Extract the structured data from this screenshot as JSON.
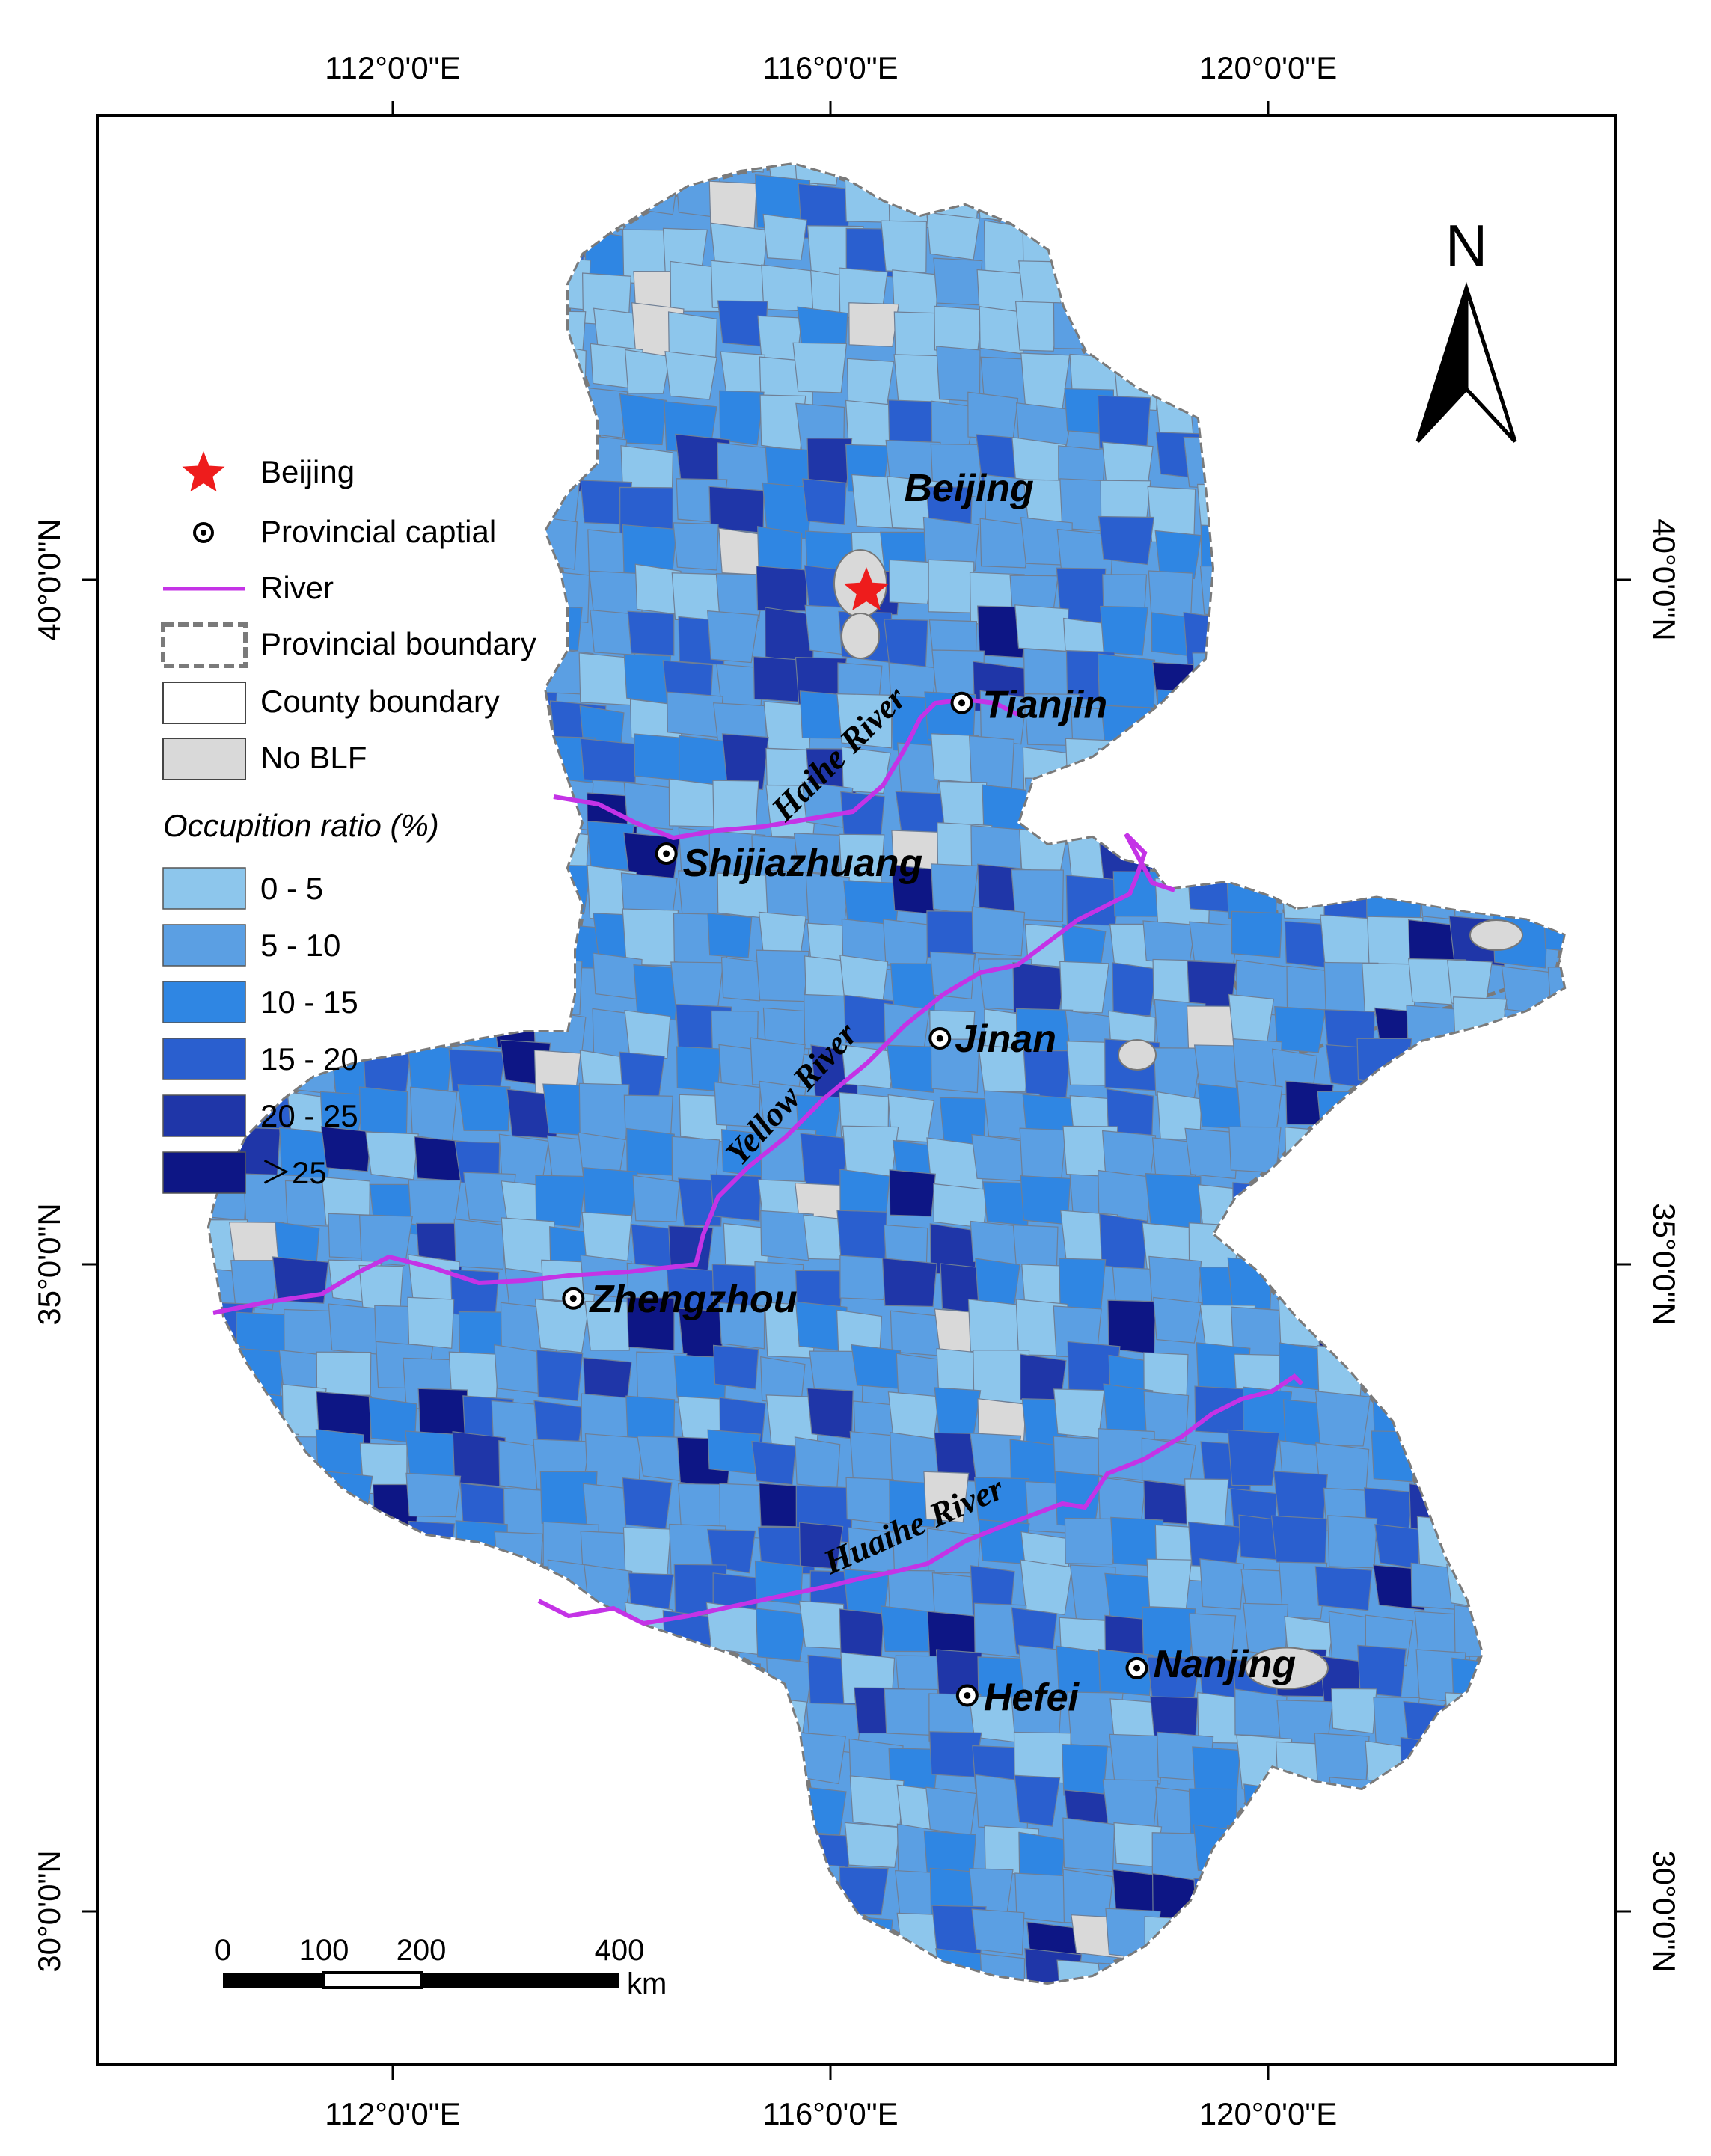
{
  "colors": {
    "class_0_5": "#8dc6ec",
    "class_5_10": "#5b9fe3",
    "class_10_15": "#2f86e3",
    "class_15_20": "#2a5fcf",
    "class_20_25": "#1f36a8",
    "class_gt25": "#0d1685",
    "no_blf": "#d9d9d9",
    "river": "#c433e6",
    "capital_star": "#ee1c1c",
    "boundary": "#7a7a7a"
  },
  "axes": {
    "top_ticks": [
      "112°0'0\"E",
      "116°0'0\"E",
      "120°0'0\"E"
    ],
    "bottom_ticks": [
      "112°0'0\"E",
      "116°0'0\"E",
      "120°0'0\"E"
    ],
    "left_ticks": [
      "40°0'0\"N",
      "35°0'0\"N",
      "30°0'0\"N"
    ],
    "right_ticks": [
      "40°0'0\"N",
      "35°0'0\"N",
      "30°0'0\"N"
    ]
  },
  "north_arrow": {
    "label": "N"
  },
  "legend": {
    "items": [
      {
        "symbol": "star",
        "label": "Beijing"
      },
      {
        "symbol": "capital",
        "label": "Provincial captial"
      },
      {
        "symbol": "river",
        "label": "River"
      },
      {
        "symbol": "provincial-boundary",
        "label": "Provincial boundary"
      },
      {
        "symbol": "county-boundary",
        "label": "County boundary"
      },
      {
        "symbol": "no-blf",
        "label": "No BLF"
      }
    ],
    "ratio_title": "Occupition ratio (%)",
    "ratio_classes": [
      {
        "label": "0 - 5",
        "color": "#8dc6ec"
      },
      {
        "label": "5 - 10",
        "color": "#5b9fe3"
      },
      {
        "label": "10 - 15",
        "color": "#2f86e3"
      },
      {
        "label": "15 - 20",
        "color": "#2a5fcf"
      },
      {
        "label": "20 - 25",
        "color": "#1f36a8"
      },
      {
        "label": "＞25",
        "color": "#0d1685"
      }
    ]
  },
  "cities": [
    {
      "name": "Beijing",
      "lon": 116.4,
      "lat": 40.3,
      "type": "label"
    },
    {
      "name": "Tianjin",
      "lon": 117.2,
      "lat": 39.1,
      "type": "capital"
    },
    {
      "name": "Shijiazhuang",
      "lon": 114.5,
      "lat": 38.0,
      "type": "capital"
    },
    {
      "name": "Jinan",
      "lon": 117.0,
      "lat": 36.65,
      "type": "capital"
    },
    {
      "name": "Zhengzhou",
      "lon": 113.65,
      "lat": 34.75,
      "type": "capital"
    },
    {
      "name": "Hefei",
      "lon": 117.25,
      "lat": 31.85,
      "type": "capital"
    },
    {
      "name": "Nanjing",
      "lon": 118.8,
      "lat": 32.05,
      "type": "capital"
    }
  ],
  "rivers": [
    {
      "name": "Haihe River"
    },
    {
      "name": "Yellow River"
    },
    {
      "name": "Huaihe River"
    }
  ],
  "scale_bar": {
    "ticks": [
      "0",
      "100",
      "200",
      "400"
    ],
    "unit": "km"
  }
}
